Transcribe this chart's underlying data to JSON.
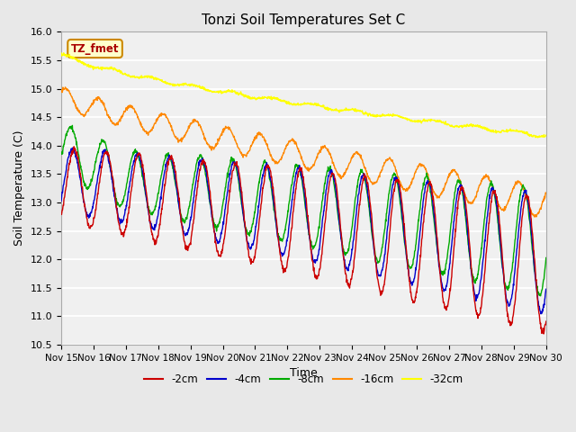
{
  "title": "Tonzi Soil Temperatures Set C",
  "xlabel": "Time",
  "ylabel": "Soil Temperature (C)",
  "ylim": [
    10.5,
    16.0
  ],
  "yticks": [
    10.5,
    11.0,
    11.5,
    12.0,
    12.5,
    13.0,
    13.5,
    14.0,
    14.5,
    15.0,
    15.5,
    16.0
  ],
  "xtick_labels": [
    "Nov 15",
    "Nov 16",
    "Nov 17",
    "Nov 18",
    "Nov 19",
    "Nov 20",
    "Nov 21",
    "Nov 22",
    "Nov 23",
    "Nov 24",
    "Nov 25",
    "Nov 26",
    "Nov 27",
    "Nov 28",
    "Nov 29",
    "Nov 30"
  ],
  "series": [
    {
      "label": "-2cm",
      "color": "#cc0000"
    },
    {
      "label": "-4cm",
      "color": "#0000cc"
    },
    {
      "label": "-8cm",
      "color": "#00aa00"
    },
    {
      "label": "-16cm",
      "color": "#ff8800"
    },
    {
      "label": "-32cm",
      "color": "#ffff00"
    }
  ],
  "legend_label": "TZ_fmet",
  "legend_box_color": "#ffffcc",
  "legend_box_edge": "#cc8800",
  "legend_text_color": "#aa0000",
  "bg_color": "#e8e8e8",
  "plot_bg_color": "#f0f0f0",
  "title_fontsize": 11,
  "axis_fontsize": 9,
  "tick_fontsize": 8
}
